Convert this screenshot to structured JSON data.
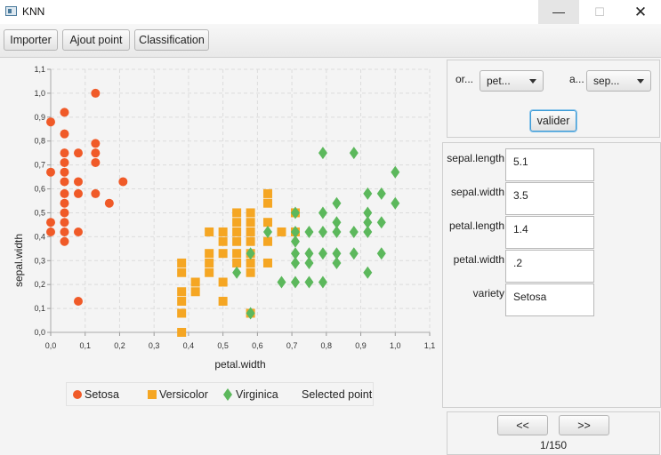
{
  "window": {
    "title": "KNN"
  },
  "window_buttons": {
    "minimize": "—",
    "maximize": "☐",
    "close": "✕"
  },
  "toolbar": {
    "importer": "Importer",
    "add_point": "Ajout point",
    "classification": "Classification"
  },
  "axis_select": {
    "x_label": "or...",
    "x_value": "pet...",
    "y_label": "a...",
    "y_value": "sep...",
    "validate": "valider"
  },
  "details": {
    "fields": [
      {
        "label": "sepal.length",
        "value": "5.1"
      },
      {
        "label": "sepal.width",
        "value": "3.5"
      },
      {
        "label": "petal.length",
        "value": "1.4"
      },
      {
        "label": "petal.width",
        "value": ".2"
      },
      {
        "label": "variety",
        "value": "Setosa"
      }
    ]
  },
  "pager": {
    "prev": "<<",
    "next": ">>",
    "page": "1/150"
  },
  "colors": {
    "setosa": "#f05a28",
    "versicolor": "#f5a623",
    "virginica": "#5cb85c"
  },
  "chart_data": {
    "type": "scatter",
    "xlabel": "petal.width",
    "ylabel": "sepal.width",
    "xlim": [
      0.0,
      1.1
    ],
    "ylim": [
      0.0,
      1.1
    ],
    "grid": true,
    "legend_placement": "bottom",
    "x_ticks": [
      "0,0",
      "0,1",
      "0,2",
      "0,3",
      "0,4",
      "0,5",
      "0,6",
      "0,7",
      "0,8",
      "0,9",
      "1,0",
      "1,1"
    ],
    "y_ticks": [
      "0,0",
      "0,1",
      "0,2",
      "0,3",
      "0,4",
      "0,5",
      "0,6",
      "0,7",
      "0,8",
      "0,9",
      "1,0",
      "1,1"
    ],
    "legend": [
      "Setosa",
      "Versicolor",
      "Virginica",
      "Selected point"
    ],
    "series": [
      {
        "name": "Setosa",
        "marker": "circle",
        "points": [
          [
            0.0,
            0.88
          ],
          [
            0.0,
            0.67
          ],
          [
            0.0,
            0.46
          ],
          [
            0.0,
            0.42
          ],
          [
            0.04,
            0.92
          ],
          [
            0.04,
            0.83
          ],
          [
            0.04,
            0.75
          ],
          [
            0.04,
            0.71
          ],
          [
            0.04,
            0.67
          ],
          [
            0.04,
            0.63
          ],
          [
            0.04,
            0.58
          ],
          [
            0.04,
            0.54
          ],
          [
            0.04,
            0.5
          ],
          [
            0.04,
            0.46
          ],
          [
            0.04,
            0.42
          ],
          [
            0.04,
            0.38
          ],
          [
            0.08,
            0.75
          ],
          [
            0.08,
            0.63
          ],
          [
            0.08,
            0.58
          ],
          [
            0.08,
            0.42
          ],
          [
            0.08,
            0.13
          ],
          [
            0.13,
            1.0
          ],
          [
            0.13,
            0.79
          ],
          [
            0.13,
            0.75
          ],
          [
            0.13,
            0.71
          ],
          [
            0.13,
            0.58
          ],
          [
            0.17,
            0.54
          ],
          [
            0.21,
            0.63
          ]
        ]
      },
      {
        "name": "Versicolor",
        "marker": "square",
        "points": [
          [
            0.38,
            0.29
          ],
          [
            0.38,
            0.25
          ],
          [
            0.38,
            0.17
          ],
          [
            0.38,
            0.13
          ],
          [
            0.38,
            0.08
          ],
          [
            0.38,
            0.0
          ],
          [
            0.42,
            0.21
          ],
          [
            0.42,
            0.17
          ],
          [
            0.46,
            0.42
          ],
          [
            0.46,
            0.33
          ],
          [
            0.46,
            0.29
          ],
          [
            0.46,
            0.25
          ],
          [
            0.5,
            0.42
          ],
          [
            0.5,
            0.38
          ],
          [
            0.5,
            0.33
          ],
          [
            0.5,
            0.21
          ],
          [
            0.5,
            0.13
          ],
          [
            0.54,
            0.5
          ],
          [
            0.54,
            0.46
          ],
          [
            0.54,
            0.42
          ],
          [
            0.54,
            0.38
          ],
          [
            0.54,
            0.33
          ],
          [
            0.54,
            0.29
          ],
          [
            0.58,
            0.5
          ],
          [
            0.58,
            0.46
          ],
          [
            0.58,
            0.42
          ],
          [
            0.58,
            0.38
          ],
          [
            0.58,
            0.33
          ],
          [
            0.58,
            0.29
          ],
          [
            0.58,
            0.25
          ],
          [
            0.58,
            0.08
          ],
          [
            0.63,
            0.58
          ],
          [
            0.63,
            0.54
          ],
          [
            0.63,
            0.46
          ],
          [
            0.63,
            0.38
          ],
          [
            0.63,
            0.29
          ],
          [
            0.67,
            0.42
          ],
          [
            0.71,
            0.5
          ],
          [
            0.71,
            0.42
          ]
        ]
      },
      {
        "name": "Virginica",
        "marker": "diamond",
        "points": [
          [
            0.54,
            0.25
          ],
          [
            0.58,
            0.33
          ],
          [
            0.58,
            0.08
          ],
          [
            0.63,
            0.42
          ],
          [
            0.67,
            0.21
          ],
          [
            0.71,
            0.5
          ],
          [
            0.71,
            0.42
          ],
          [
            0.71,
            0.38
          ],
          [
            0.71,
            0.33
          ],
          [
            0.71,
            0.29
          ],
          [
            0.71,
            0.21
          ],
          [
            0.75,
            0.42
          ],
          [
            0.75,
            0.33
          ],
          [
            0.75,
            0.29
          ],
          [
            0.75,
            0.21
          ],
          [
            0.79,
            0.75
          ],
          [
            0.79,
            0.5
          ],
          [
            0.79,
            0.42
          ],
          [
            0.79,
            0.33
          ],
          [
            0.79,
            0.21
          ],
          [
            0.83,
            0.54
          ],
          [
            0.83,
            0.46
          ],
          [
            0.83,
            0.42
          ],
          [
            0.83,
            0.33
          ],
          [
            0.83,
            0.29
          ],
          [
            0.88,
            0.75
          ],
          [
            0.88,
            0.42
          ],
          [
            0.88,
            0.33
          ],
          [
            0.92,
            0.58
          ],
          [
            0.92,
            0.5
          ],
          [
            0.92,
            0.46
          ],
          [
            0.92,
            0.42
          ],
          [
            0.92,
            0.25
          ],
          [
            0.96,
            0.58
          ],
          [
            0.96,
            0.46
          ],
          [
            0.96,
            0.33
          ],
          [
            1.0,
            0.67
          ],
          [
            1.0,
            0.54
          ]
        ]
      }
    ]
  }
}
